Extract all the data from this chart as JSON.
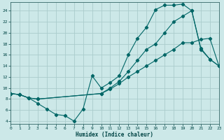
{
  "xlabel": "Humidex (Indice chaleur)",
  "bg_color": "#cce8e8",
  "grid_color": "#aacccc",
  "line_color": "#006666",
  "xlim": [
    0,
    23
  ],
  "ylim": [
    3.5,
    25.5
  ],
  "xticks": [
    0,
    1,
    2,
    3,
    4,
    5,
    6,
    7,
    8,
    9,
    10,
    11,
    12,
    13,
    14,
    15,
    16,
    17,
    18,
    19,
    20,
    21,
    22,
    23
  ],
  "yticks": [
    4,
    6,
    8,
    10,
    12,
    14,
    16,
    18,
    20,
    22,
    24
  ],
  "line1_x": [
    0,
    1,
    2,
    3,
    4,
    5,
    6,
    7,
    8,
    9,
    10,
    11,
    12,
    13,
    14,
    15,
    16,
    17,
    18,
    19,
    20,
    21,
    22,
    23
  ],
  "line1_y": [
    9.0,
    8.8,
    8.2,
    7.2,
    6.2,
    5.2,
    5.0,
    4.0,
    6.2,
    12.2,
    10.0,
    11.0,
    12.2,
    16.0,
    19.0,
    21.0,
    24.2,
    25.0,
    25.0,
    25.2,
    24.0,
    17.0,
    15.2,
    14.0
  ],
  "line2_x": [
    0,
    1,
    2,
    3,
    10,
    11,
    12,
    13,
    14,
    15,
    16,
    17,
    18,
    19,
    20,
    21,
    22,
    23
  ],
  "line2_y": [
    9.0,
    8.8,
    8.2,
    8.0,
    9.0,
    9.8,
    10.8,
    12.0,
    13.0,
    14.0,
    15.0,
    16.0,
    17.0,
    18.2,
    18.2,
    18.8,
    19.0,
    14.0
  ],
  "line3_x": [
    0,
    1,
    2,
    3,
    10,
    11,
    12,
    13,
    14,
    15,
    16,
    17,
    18,
    19,
    20,
    21,
    22,
    23
  ],
  "line3_y": [
    9.0,
    8.8,
    8.2,
    8.0,
    9.0,
    10.0,
    11.2,
    13.0,
    15.0,
    17.0,
    18.0,
    20.0,
    22.0,
    23.0,
    24.0,
    17.2,
    15.2,
    14.0
  ]
}
